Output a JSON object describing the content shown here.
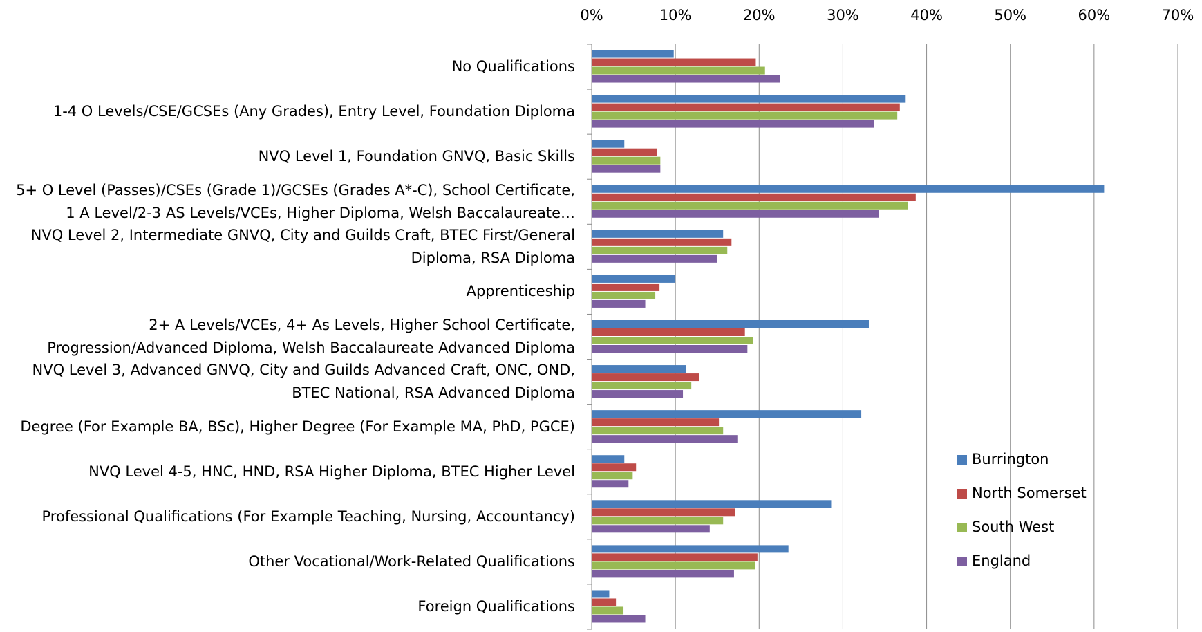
{
  "chart_data": {
    "type": "barh",
    "categories": [
      "No Qualifications",
      "1-4 O Levels/CSE/GCSEs (Any Grades), Entry Level, Foundation Diploma",
      "NVQ Level 1, Foundation GNVQ, Basic Skills",
      "5+ O Level (Passes)/CSEs (Grade 1)/GCSEs (Grades A*-C), School Certificate, 1 A Level/2-3 AS Levels/VCEs, Higher Diploma, Welsh Baccalaureate…",
      "NVQ Level 2, Intermediate GNVQ, City and Guilds Craft, BTEC First/General Diploma, RSA Diploma",
      "Apprenticeship",
      "2+ A Levels/VCEs, 4+ As Levels, Higher School Certificate, Progression/Advanced Diploma, Welsh Baccalaureate Advanced Diploma",
      "NVQ Level 3, Advanced GNVQ, City and Guilds Advanced Craft, ONC, OND, BTEC National, RSA Advanced Diploma",
      "Degree (For Example BA, BSc), Higher Degree (For Example MA, PhD, PGCE)",
      "NVQ Level 4-5, HNC, HND, RSA Higher Diploma, BTEC Higher Level",
      "Professional Qualifications (For Example Teaching, Nursing, Accountancy)",
      "Other Vocational/Work-Related Qualifications",
      "Foreign Qualifications"
    ],
    "series": [
      {
        "name": "Burrington",
        "color": "#4a7ebb",
        "values": [
          9.8,
          37.5,
          3.9,
          61.2,
          15.7,
          10.0,
          33.1,
          11.3,
          32.2,
          3.9,
          28.6,
          23.5,
          2.1
        ]
      },
      {
        "name": "North Somerset",
        "color": "#be4b48",
        "values": [
          19.6,
          36.8,
          7.8,
          38.7,
          16.7,
          8.1,
          18.3,
          12.8,
          15.2,
          5.3,
          17.1,
          19.8,
          2.9
        ]
      },
      {
        "name": "South West",
        "color": "#98b954",
        "values": [
          20.7,
          36.5,
          8.2,
          37.8,
          16.2,
          7.6,
          19.3,
          11.9,
          15.7,
          4.9,
          15.7,
          19.5,
          3.8
        ]
      },
      {
        "name": "England",
        "color": "#7d5fa0",
        "values": [
          22.5,
          33.7,
          8.2,
          34.3,
          15.0,
          6.4,
          18.6,
          10.9,
          17.4,
          4.4,
          14.1,
          17.0,
          6.4
        ]
      }
    ],
    "xlim": [
      0,
      70
    ],
    "xticks": [
      {
        "value": 0,
        "label": "0%"
      },
      {
        "value": 10,
        "label": "10%"
      },
      {
        "value": 20,
        "label": "20%"
      },
      {
        "value": 30,
        "label": "30%"
      },
      {
        "value": 40,
        "label": "40%"
      },
      {
        "value": 50,
        "label": "50%"
      },
      {
        "value": 60,
        "label": "60%"
      },
      {
        "value": 70,
        "label": "70%"
      }
    ],
    "grid": true,
    "legend": "right"
  }
}
